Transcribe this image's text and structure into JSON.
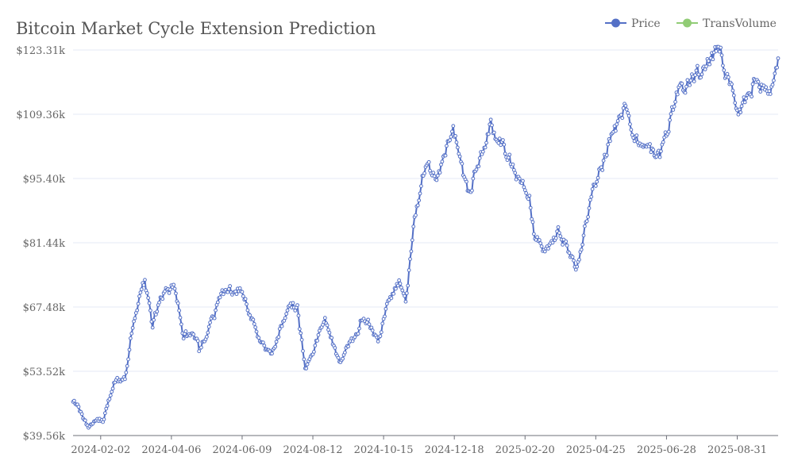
{
  "chart_data": {
    "type": "line",
    "title": "Bitcoin Market Cycle Extension Prediction",
    "legend": {
      "placement": "top-right",
      "items": [
        {
          "label": "Price",
          "color": "#5470c6"
        },
        {
          "label": "TransVolume",
          "color": "#91cc75"
        }
      ]
    },
    "ylim": [
      39560,
      123310
    ],
    "y_ticks": [
      "$39.56k",
      "$53.52k",
      "$67.48k",
      "$81.44k",
      "$95.40k",
      "$109.36k",
      "$123.31k"
    ],
    "x_ticks": [
      "2024-02-02",
      "2024-04-06",
      "2024-06-09",
      "2024-08-12",
      "2024-10-15",
      "2024-12-18",
      "2025-02-20",
      "2025-04-25",
      "2025-06-28",
      "2025-08-31"
    ],
    "x_range": [
      "2024-01-08",
      "2025-10-07"
    ],
    "grid": true,
    "series": [
      {
        "name": "Price",
        "color": "#5470c6",
        "x_start": "2024-01-08",
        "x_end": "2025-10-07",
        "anchors": [
          [
            "2024-01-08",
            46900
          ],
          [
            "2024-01-12",
            46200
          ],
          [
            "2024-01-22",
            41000
          ],
          [
            "2024-01-28",
            42300
          ],
          [
            "2024-02-05",
            43000
          ],
          [
            "2024-02-14",
            51500
          ],
          [
            "2024-02-24",
            51500
          ],
          [
            "2024-03-01",
            61900
          ],
          [
            "2024-03-06",
            67500
          ],
          [
            "2024-03-13",
            73000
          ],
          [
            "2024-03-20",
            63000
          ],
          [
            "2024-03-27",
            70000
          ],
          [
            "2024-04-08",
            71600
          ],
          [
            "2024-04-17",
            61300
          ],
          [
            "2024-04-30",
            60600
          ],
          [
            "2024-05-01",
            57400
          ],
          [
            "2024-05-15",
            66000
          ],
          [
            "2024-05-21",
            70100
          ],
          [
            "2024-06-07",
            71600
          ],
          [
            "2024-06-24",
            60300
          ],
          [
            "2024-07-05",
            56700
          ],
          [
            "2024-07-22",
            68100
          ],
          [
            "2024-07-29",
            66800
          ],
          [
            "2024-08-05",
            54000
          ],
          [
            "2024-08-23",
            64000
          ],
          [
            "2024-09-06",
            54800
          ],
          [
            "2024-09-27",
            65700
          ],
          [
            "2024-10-10",
            60100
          ],
          [
            "2024-10-20",
            68400
          ],
          [
            "2024-10-29",
            72700
          ],
          [
            "2024-11-04",
            68200
          ],
          [
            "2024-11-12",
            88000
          ],
          [
            "2024-11-22",
            99000
          ],
          [
            "2024-12-04",
            96000
          ],
          [
            "2024-12-17",
            106100
          ],
          [
            "2024-12-30",
            92400
          ],
          [
            "2025-01-20",
            106200
          ],
          [
            "2025-01-31",
            102400
          ],
          [
            "2025-02-24",
            91500
          ],
          [
            "2025-02-28",
            84300
          ],
          [
            "2025-03-10",
            78500
          ],
          [
            "2025-03-22",
            84400
          ],
          [
            "2025-04-08",
            76300
          ],
          [
            "2025-04-22",
            93700
          ],
          [
            "2025-05-08",
            103000
          ],
          [
            "2025-05-22",
            111600
          ],
          [
            "2025-06-05",
            101600
          ],
          [
            "2025-06-22",
            100900
          ],
          [
            "2025-07-10",
            116000
          ],
          [
            "2025-07-28",
            118000
          ],
          [
            "2025-08-14",
            124000
          ],
          [
            "2025-08-31",
            108700
          ],
          [
            "2025-09-15",
            115300
          ],
          [
            "2025-09-30",
            114100
          ],
          [
            "2025-10-07",
            121500
          ]
        ]
      },
      {
        "name": "TransVolume",
        "color": "#91cc75",
        "values": []
      }
    ]
  }
}
